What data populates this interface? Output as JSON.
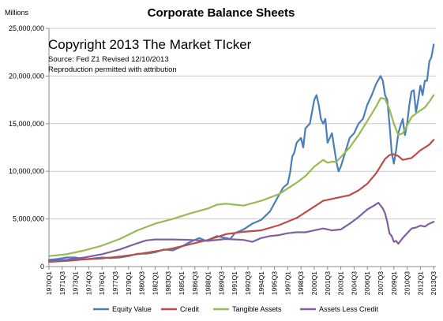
{
  "chart_data": {
    "type": "line",
    "title": "Corporate Balance Sheets",
    "ylabel": "Millions",
    "xlabel": "",
    "annotations": [
      "Copyright 2013 The Market TIcker",
      "Source: Fed Z1 Revised 12/10/2013",
      "Reproduction permitted with attribution"
    ],
    "ylim": [
      0,
      25000000
    ],
    "yticks": [
      0,
      5000000,
      10000000,
      15000000,
      20000000,
      25000000
    ],
    "ytick_labels": [
      "0",
      "5,000,000",
      "10,000,000",
      "15,000,000",
      "20,000,000",
      "25,000,000"
    ],
    "xlim": [
      1970.0,
      2013.75
    ],
    "xticks": [
      1970.0,
      1971.5,
      1973.0,
      1974.5,
      1976.0,
      1977.5,
      1979.0,
      1980.5,
      1982.0,
      1983.5,
      1985.0,
      1986.5,
      1988.0,
      1989.5,
      1991.0,
      1992.5,
      1994.0,
      1995.5,
      1997.0,
      1998.5,
      2000.0,
      2001.5,
      2003.0,
      2004.5,
      2006.0,
      2007.5,
      2009.0,
      2010.5,
      2012.0,
      2013.5
    ],
    "xtick_labels": [
      "1970Q1",
      "1971Q3",
      "1973Q1",
      "1974Q3",
      "1976Q1",
      "1977Q3",
      "1979Q1",
      "1980Q3",
      "1982Q1",
      "1983Q3",
      "1985Q1",
      "1986Q3",
      "1988Q1",
      "1989Q3",
      "1991Q1",
      "1992Q3",
      "1994Q1",
      "1995Q3",
      "1997Q1",
      "1998Q3",
      "2000Q1",
      "2001Q3",
      "2003Q1",
      "2004Q3",
      "2006Q1",
      "2007Q3",
      "2009Q1",
      "2010Q3",
      "2012Q1",
      "2013Q3"
    ],
    "grid": "horizontal",
    "legend": "bottom",
    "series": [
      {
        "name": "Equity Value",
        "color": "#4a7ebb",
        "points": [
          [
            1970.0,
            700000
          ],
          [
            1971.0,
            800000
          ],
          [
            1972.0,
            950000
          ],
          [
            1973.0,
            950000
          ],
          [
            1974.0,
            750000
          ],
          [
            1975.0,
            850000
          ],
          [
            1976.0,
            950000
          ],
          [
            1977.0,
            900000
          ],
          [
            1978.0,
            950000
          ],
          [
            1979.0,
            1100000
          ],
          [
            1980.0,
            1350000
          ],
          [
            1981.0,
            1350000
          ],
          [
            1982.0,
            1500000
          ],
          [
            1983.0,
            1800000
          ],
          [
            1984.0,
            1700000
          ],
          [
            1985.0,
            2100000
          ],
          [
            1986.0,
            2600000
          ],
          [
            1987.0,
            3000000
          ],
          [
            1987.75,
            2700000
          ],
          [
            1988.0,
            2800000
          ],
          [
            1989.0,
            3200000
          ],
          [
            1990.0,
            3000000
          ],
          [
            1990.5,
            2900000
          ],
          [
            1991.0,
            3500000
          ],
          [
            1992.0,
            3900000
          ],
          [
            1993.0,
            4500000
          ],
          [
            1994.0,
            4900000
          ],
          [
            1995.0,
            5800000
          ],
          [
            1996.0,
            7500000
          ],
          [
            1996.5,
            8300000
          ],
          [
            1997.0,
            8700000
          ],
          [
            1997.25,
            9800000
          ],
          [
            1997.5,
            11500000
          ],
          [
            1997.75,
            12000000
          ],
          [
            1998.0,
            13000000
          ],
          [
            1998.5,
            13500000
          ],
          [
            1998.75,
            12500000
          ],
          [
            1999.0,
            14500000
          ],
          [
            1999.5,
            15000000
          ],
          [
            2000.0,
            17500000
          ],
          [
            2000.25,
            18000000
          ],
          [
            2000.5,
            17000000
          ],
          [
            2000.75,
            15500000
          ],
          [
            2001.0,
            15000000
          ],
          [
            2001.25,
            15500000
          ],
          [
            2001.5,
            13000000
          ],
          [
            2001.75,
            13500000
          ],
          [
            2002.0,
            14000000
          ],
          [
            2002.5,
            11000000
          ],
          [
            2002.75,
            10000000
          ],
          [
            2003.0,
            10500000
          ],
          [
            2003.5,
            12000000
          ],
          [
            2004.0,
            13500000
          ],
          [
            2004.5,
            14000000
          ],
          [
            2005.0,
            15000000
          ],
          [
            2005.5,
            15500000
          ],
          [
            2006.0,
            17000000
          ],
          [
            2006.5,
            18000000
          ],
          [
            2007.0,
            19200000
          ],
          [
            2007.5,
            20000000
          ],
          [
            2007.75,
            19500000
          ],
          [
            2008.0,
            18000000
          ],
          [
            2008.25,
            17500000
          ],
          [
            2008.5,
            15000000
          ],
          [
            2008.75,
            12000000
          ],
          [
            2009.0,
            10800000
          ],
          [
            2009.25,
            12200000
          ],
          [
            2009.5,
            14000000
          ],
          [
            2009.75,
            14800000
          ],
          [
            2010.0,
            15500000
          ],
          [
            2010.25,
            13800000
          ],
          [
            2010.5,
            15000000
          ],
          [
            2010.75,
            17000000
          ],
          [
            2011.0,
            18400000
          ],
          [
            2011.25,
            18500000
          ],
          [
            2011.5,
            16200000
          ],
          [
            2011.75,
            17500000
          ],
          [
            2012.0,
            19000000
          ],
          [
            2012.25,
            18000000
          ],
          [
            2012.5,
            19500000
          ],
          [
            2012.75,
            19500000
          ],
          [
            2013.0,
            21500000
          ],
          [
            2013.25,
            22000000
          ],
          [
            2013.5,
            23300000
          ]
        ]
      },
      {
        "name": "Credit",
        "color": "#be4b48",
        "points": [
          [
            1970.0,
            500000
          ],
          [
            1972.0,
            600000
          ],
          [
            1974.0,
            750000
          ],
          [
            1976.0,
            850000
          ],
          [
            1978.0,
            1050000
          ],
          [
            1980.0,
            1300000
          ],
          [
            1982.0,
            1600000
          ],
          [
            1984.0,
            1900000
          ],
          [
            1986.0,
            2350000
          ],
          [
            1988.0,
            2800000
          ],
          [
            1990.0,
            3400000
          ],
          [
            1992.0,
            3650000
          ],
          [
            1994.0,
            3800000
          ],
          [
            1996.0,
            4350000
          ],
          [
            1998.0,
            5100000
          ],
          [
            2000.0,
            6300000
          ],
          [
            2001.0,
            6900000
          ],
          [
            2002.0,
            7100000
          ],
          [
            2003.0,
            7300000
          ],
          [
            2004.0,
            7500000
          ],
          [
            2005.0,
            8000000
          ],
          [
            2006.0,
            8700000
          ],
          [
            2007.0,
            9800000
          ],
          [
            2008.0,
            11300000
          ],
          [
            2008.5,
            11700000
          ],
          [
            2009.0,
            11800000
          ],
          [
            2009.5,
            11600000
          ],
          [
            2010.0,
            11200000
          ],
          [
            2010.5,
            11300000
          ],
          [
            2011.0,
            11400000
          ],
          [
            2012.0,
            12200000
          ],
          [
            2013.0,
            12800000
          ],
          [
            2013.5,
            13300000
          ]
        ]
      },
      {
        "name": "Tangible Assets",
        "color": "#98b954",
        "points": [
          [
            1970.0,
            1100000
          ],
          [
            1972.0,
            1300000
          ],
          [
            1974.0,
            1700000
          ],
          [
            1976.0,
            2200000
          ],
          [
            1978.0,
            2900000
          ],
          [
            1980.0,
            3800000
          ],
          [
            1982.0,
            4500000
          ],
          [
            1984.0,
            5000000
          ],
          [
            1986.0,
            5600000
          ],
          [
            1988.0,
            6100000
          ],
          [
            1989.0,
            6500000
          ],
          [
            1990.0,
            6600000
          ],
          [
            1991.0,
            6500000
          ],
          [
            1992.0,
            6400000
          ],
          [
            1994.0,
            6900000
          ],
          [
            1996.0,
            7600000
          ],
          [
            1997.0,
            8200000
          ],
          [
            1998.0,
            8800000
          ],
          [
            1999.0,
            9500000
          ],
          [
            2000.0,
            10500000
          ],
          [
            2001.0,
            11200000
          ],
          [
            2001.5,
            10900000
          ],
          [
            2002.0,
            11000000
          ],
          [
            2002.5,
            11000000
          ],
          [
            2003.0,
            11500000
          ],
          [
            2004.0,
            12500000
          ],
          [
            2005.0,
            13800000
          ],
          [
            2006.0,
            15300000
          ],
          [
            2007.0,
            16800000
          ],
          [
            2007.5,
            17700000
          ],
          [
            2008.0,
            17600000
          ],
          [
            2008.5,
            16500000
          ],
          [
            2009.0,
            15000000
          ],
          [
            2009.5,
            13800000
          ],
          [
            2010.0,
            14000000
          ],
          [
            2010.5,
            14800000
          ],
          [
            2011.0,
            15700000
          ],
          [
            2012.0,
            16400000
          ],
          [
            2012.5,
            16700000
          ],
          [
            2013.0,
            17300000
          ],
          [
            2013.5,
            18000000
          ]
        ]
      },
      {
        "name": "Assets Less Credit",
        "color": "#7d60a0",
        "points": [
          [
            1970.0,
            600000
          ],
          [
            1972.0,
            700000
          ],
          [
            1974.0,
            950000
          ],
          [
            1976.0,
            1300000
          ],
          [
            1978.0,
            1800000
          ],
          [
            1980.0,
            2450000
          ],
          [
            1981.0,
            2750000
          ],
          [
            1982.0,
            2850000
          ],
          [
            1984.0,
            2850000
          ],
          [
            1986.0,
            2800000
          ],
          [
            1988.0,
            2700000
          ],
          [
            1990.0,
            2900000
          ],
          [
            1992.0,
            2800000
          ],
          [
            1993.0,
            2600000
          ],
          [
            1994.0,
            3000000
          ],
          [
            1995.0,
            3200000
          ],
          [
            1996.0,
            3300000
          ],
          [
            1997.0,
            3500000
          ],
          [
            1998.0,
            3600000
          ],
          [
            1999.0,
            3600000
          ],
          [
            2000.0,
            3800000
          ],
          [
            2001.0,
            4000000
          ],
          [
            2002.0,
            3800000
          ],
          [
            2003.0,
            3900000
          ],
          [
            2004.0,
            4500000
          ],
          [
            2005.0,
            5200000
          ],
          [
            2006.0,
            6000000
          ],
          [
            2006.75,
            6400000
          ],
          [
            2007.25,
            6700000
          ],
          [
            2007.75,
            6100000
          ],
          [
            2008.0,
            5600000
          ],
          [
            2008.25,
            4700000
          ],
          [
            2008.5,
            3500000
          ],
          [
            2008.75,
            3200000
          ],
          [
            2009.0,
            2600000
          ],
          [
            2009.25,
            2700000
          ],
          [
            2009.5,
            2400000
          ],
          [
            2010.0,
            3000000
          ],
          [
            2010.5,
            3500000
          ],
          [
            2011.0,
            4000000
          ],
          [
            2011.5,
            4100000
          ],
          [
            2012.0,
            4300000
          ],
          [
            2012.5,
            4200000
          ],
          [
            2013.0,
            4500000
          ],
          [
            2013.5,
            4700000
          ]
        ]
      }
    ]
  }
}
